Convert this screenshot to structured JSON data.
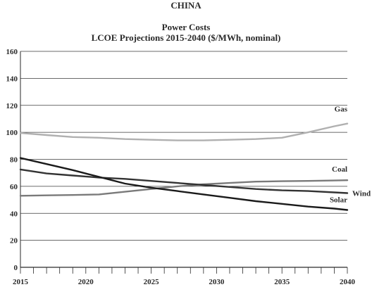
{
  "chart_data": {
    "type": "line",
    "title": "CHINA",
    "subtitle": "Power Costs",
    "subtitle2": "LCOE Projections 2015-2040 ($/MWh, nominal)",
    "xlabel": "",
    "ylabel": "",
    "xlim": [
      2015,
      2040
    ],
    "ylim": [
      0,
      160
    ],
    "xticks": [
      2015,
      2020,
      2025,
      2030,
      2035,
      2040
    ],
    "yticks": [
      0,
      20,
      40,
      60,
      80,
      100,
      120,
      140,
      160
    ],
    "grid": "horizontal",
    "legend": "inline-end-labels",
    "series": [
      {
        "name": "Gas",
        "color": "#b0b0b0",
        "x": [
          2015,
          2017,
          2019,
          2021,
          2023,
          2025,
          2027,
          2029,
          2031,
          2033,
          2035,
          2037,
          2039,
          2040
        ],
        "y": [
          99.5,
          98.0,
          96.5,
          96.0,
          95.0,
          94.5,
          94.0,
          94.0,
          94.5,
          95.0,
          96.0,
          100.0,
          104.5,
          106.5
        ]
      },
      {
        "name": "Coal",
        "color": "#7a7a7a",
        "x": [
          2015,
          2017,
          2019,
          2021,
          2023,
          2025,
          2027,
          2029,
          2031,
          2033,
          2035,
          2037,
          2039,
          2040
        ],
        "y": [
          53.0,
          53.3,
          53.6,
          54.0,
          56.0,
          58.0,
          60.0,
          61.5,
          62.5,
          63.5,
          63.8,
          64.0,
          64.3,
          64.5
        ]
      },
      {
        "name": "Wind",
        "color": "#333333",
        "x": [
          2015,
          2017,
          2019,
          2021,
          2023,
          2025,
          2027,
          2029,
          2031,
          2033,
          2035,
          2037,
          2039,
          2040
        ],
        "y": [
          72.5,
          69.5,
          68.0,
          66.5,
          65.5,
          64.0,
          62.5,
          61.0,
          59.5,
          58.0,
          57.0,
          56.5,
          55.5,
          55.0
        ]
      },
      {
        "name": "Solar",
        "color": "#1a1a1a",
        "x": [
          2015,
          2017,
          2019,
          2021,
          2023,
          2025,
          2027,
          2029,
          2031,
          2033,
          2035,
          2037,
          2039,
          2040
        ],
        "y": [
          81.0,
          76.5,
          72.0,
          67.0,
          62.0,
          59.0,
          56.5,
          54.0,
          51.5,
          49.0,
          47.0,
          45.0,
          43.5,
          42.5
        ]
      }
    ]
  }
}
